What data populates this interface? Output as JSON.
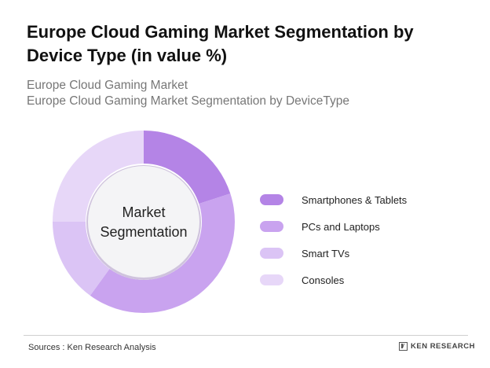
{
  "header": {
    "title": "Europe Cloud Gaming Market Segmentation by Device Type (in value %)",
    "subtitle_line1": "Europe Cloud Gaming Market",
    "subtitle_line2": "Europe Cloud Gaming Market Segmentation by DeviceType"
  },
  "chart_data": {
    "type": "pie",
    "donut": true,
    "center_label": [
      "Market",
      "Segmentation"
    ],
    "categories": [
      "Smartphones & Tablets",
      "PCs and Laptops",
      "Smart TVs",
      "Consoles"
    ],
    "values": [
      20,
      40,
      15,
      25
    ],
    "colors": [
      "#b484e6",
      "#c9a3ef",
      "#dbc4f5",
      "#e7d7f8"
    ],
    "legend_position": "right"
  },
  "footer": {
    "source": "Sources : Ken Research Analysis",
    "brand": "KEN RESEARCH"
  }
}
